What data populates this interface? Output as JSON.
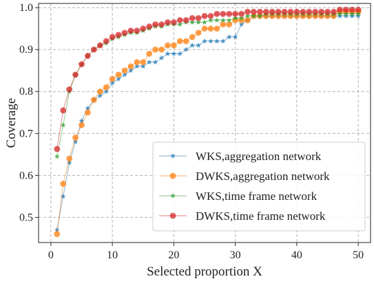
{
  "chart_data": {
    "type": "line",
    "xlabel": "Selected proportion X",
    "ylabel": "Coverage",
    "xlim": [
      -2,
      52
    ],
    "ylim": [
      0.44,
      1.01
    ],
    "xticks": [
      0,
      10,
      20,
      30,
      40,
      50
    ],
    "yticks": [
      0.5,
      0.6,
      0.7,
      0.8,
      0.9,
      1.0
    ],
    "grid": true,
    "legend_position": "lower-right",
    "x": [
      1,
      2,
      3,
      4,
      5,
      6,
      7,
      8,
      9,
      10,
      11,
      12,
      13,
      14,
      15,
      16,
      17,
      18,
      19,
      20,
      21,
      22,
      23,
      24,
      25,
      26,
      27,
      28,
      29,
      30,
      31,
      32,
      33,
      34,
      35,
      36,
      37,
      38,
      39,
      40,
      41,
      42,
      43,
      44,
      45,
      46,
      47,
      48,
      49,
      50
    ],
    "series": [
      {
        "name": "WKS,aggregation network",
        "color": "#1f77b4",
        "marker": "star",
        "values": [
          0.47,
          0.55,
          0.63,
          0.68,
          0.73,
          0.76,
          0.78,
          0.79,
          0.8,
          0.82,
          0.83,
          0.84,
          0.85,
          0.86,
          0.86,
          0.87,
          0.87,
          0.88,
          0.89,
          0.89,
          0.89,
          0.9,
          0.91,
          0.91,
          0.92,
          0.92,
          0.92,
          0.92,
          0.93,
          0.93,
          0.96,
          0.97,
          0.98,
          0.98,
          0.98,
          0.98,
          0.98,
          0.98,
          0.98,
          0.98,
          0.98,
          0.98,
          0.98,
          0.98,
          0.98,
          0.98,
          0.98,
          0.98,
          0.98,
          0.98
        ]
      },
      {
        "name": "DWKS,aggregation network",
        "color": "#ff7f0e",
        "marker": "circle",
        "values": [
          0.46,
          0.58,
          0.64,
          0.69,
          0.72,
          0.75,
          0.78,
          0.8,
          0.81,
          0.83,
          0.84,
          0.85,
          0.86,
          0.87,
          0.87,
          0.89,
          0.9,
          0.9,
          0.91,
          0.91,
          0.92,
          0.92,
          0.93,
          0.94,
          0.95,
          0.95,
          0.95,
          0.96,
          0.96,
          0.97,
          0.97,
          0.97,
          0.98,
          0.98,
          0.98,
          0.98,
          0.98,
          0.98,
          0.98,
          0.98,
          0.98,
          0.98,
          0.98,
          0.98,
          0.98,
          0.98,
          0.99,
          0.99,
          0.99,
          0.99
        ]
      },
      {
        "name": "WKS,time frame network",
        "color": "#2ca02c",
        "marker": "star",
        "values": [
          0.645,
          0.72,
          0.8,
          0.84,
          0.865,
          0.885,
          0.9,
          0.91,
          0.915,
          0.925,
          0.93,
          0.935,
          0.94,
          0.94,
          0.945,
          0.95,
          0.955,
          0.955,
          0.96,
          0.96,
          0.96,
          0.965,
          0.965,
          0.965,
          0.965,
          0.97,
          0.97,
          0.97,
          0.97,
          0.975,
          0.975,
          0.98,
          0.98,
          0.98,
          0.985,
          0.985,
          0.985,
          0.985,
          0.985,
          0.985,
          0.985,
          0.985,
          0.985,
          0.985,
          0.985,
          0.985,
          0.985,
          0.985,
          0.985,
          0.985
        ]
      },
      {
        "name": "DWKS,time frame network",
        "color": "#d62728",
        "marker": "circle",
        "values": [
          0.663,
          0.755,
          0.805,
          0.84,
          0.865,
          0.885,
          0.9,
          0.91,
          0.92,
          0.93,
          0.935,
          0.94,
          0.945,
          0.945,
          0.95,
          0.955,
          0.96,
          0.96,
          0.965,
          0.965,
          0.97,
          0.97,
          0.975,
          0.975,
          0.98,
          0.98,
          0.985,
          0.985,
          0.985,
          0.985,
          0.985,
          0.99,
          0.99,
          0.99,
          0.99,
          0.99,
          0.99,
          0.99,
          0.99,
          0.99,
          0.99,
          0.99,
          0.99,
          0.99,
          0.99,
          0.99,
          0.995,
          0.995,
          0.995,
          0.995
        ]
      }
    ]
  }
}
